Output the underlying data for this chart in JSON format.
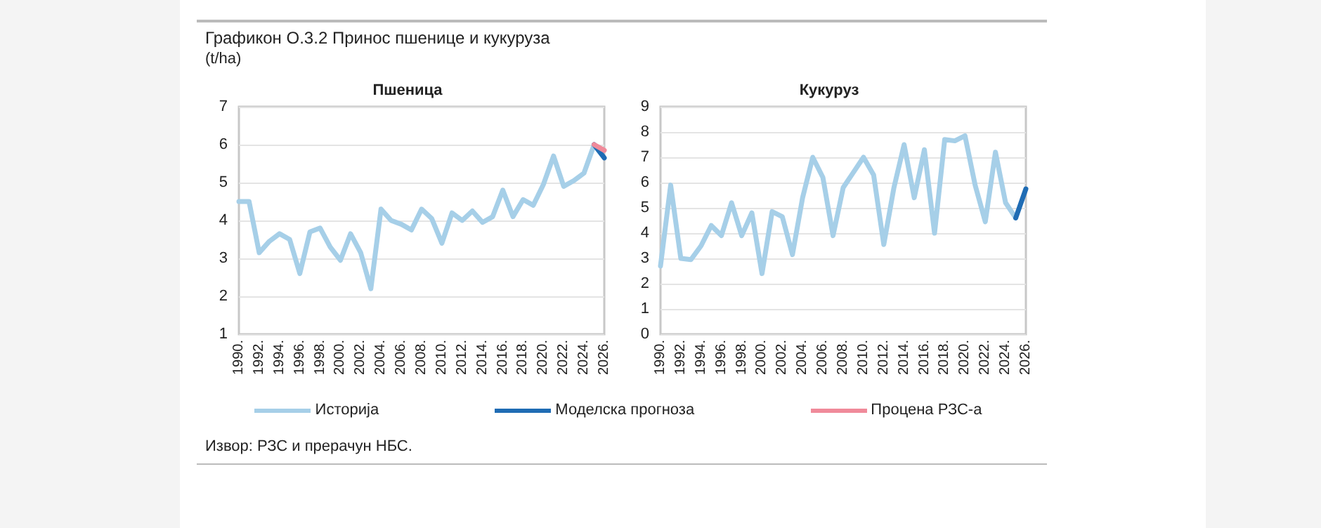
{
  "chart_data": [
    {
      "type": "line",
      "title": "Пшеница",
      "ylabel": "(t/ha)",
      "annotations": [
        "Графикон О.3.2 Принос пшенице и кукуруза",
        "Извор: РЗС и прерачун НБС."
      ],
      "categories": [
        "1990.",
        null,
        "1992.",
        null,
        "1994.",
        null,
        "1996.",
        null,
        "1998.",
        null,
        "2000.",
        null,
        "2002.",
        null,
        "2004.",
        null,
        "2006.",
        null,
        "2008.",
        null,
        "2010.",
        null,
        "2012.",
        null,
        "2014.",
        null,
        "2016.",
        null,
        "2018.",
        null,
        "2020.",
        null,
        "2022.",
        null,
        "2024.",
        null,
        "2026."
      ],
      "series": [
        {
          "name": "Историја",
          "color": "#a6cfe8",
          "values": [
            4.5,
            4.5,
            3.15,
            3.45,
            3.65,
            3.5,
            2.6,
            3.7,
            3.8,
            3.3,
            2.95,
            3.65,
            3.15,
            2.2,
            4.3,
            4.0,
            3.9,
            3.75,
            4.3,
            4.05,
            3.4,
            4.2,
            4.0,
            4.25,
            3.95,
            4.1,
            4.8,
            4.1,
            4.55,
            4.4,
            4.95,
            5.7,
            4.9,
            5.05,
            5.25,
            6.0,
            null
          ]
        },
        {
          "name": "Моделска прогноза",
          "color": "#1f6cb4",
          "values": [
            null,
            null,
            null,
            null,
            null,
            null,
            null,
            null,
            null,
            null,
            null,
            null,
            null,
            null,
            null,
            null,
            null,
            null,
            null,
            null,
            null,
            null,
            null,
            null,
            null,
            null,
            null,
            null,
            null,
            null,
            null,
            null,
            null,
            null,
            null,
            6.0,
            5.65
          ]
        },
        {
          "name": "Процена РЗС-а",
          "color": "#f08a9a",
          "values": [
            null,
            null,
            null,
            null,
            null,
            null,
            null,
            null,
            null,
            null,
            null,
            null,
            null,
            null,
            null,
            null,
            null,
            null,
            null,
            null,
            null,
            null,
            null,
            null,
            null,
            null,
            null,
            null,
            null,
            null,
            null,
            null,
            null,
            null,
            null,
            6.0,
            5.85
          ]
        }
      ],
      "ylim": [
        1,
        7
      ],
      "yticks": [
        1,
        2,
        3,
        4,
        5,
        6,
        7
      ],
      "grid": "y",
      "legend": "bottom",
      "marker": "none"
    },
    {
      "type": "line",
      "title": "Кукуруз",
      "categories": [
        "1990.",
        null,
        "1992.",
        null,
        "1994.",
        null,
        "1996.",
        null,
        "1998.",
        null,
        "2000.",
        null,
        "2002.",
        null,
        "2004.",
        null,
        "2006.",
        null,
        "2008.",
        null,
        "2010.",
        null,
        "2012.",
        null,
        "2014.",
        null,
        "2016.",
        null,
        "2018.",
        null,
        "2020.",
        null,
        "2022.",
        null,
        "2024.",
        null,
        "2026."
      ],
      "series": [
        {
          "name": "Историја",
          "color": "#a6cfe8",
          "values": [
            2.7,
            5.9,
            3.0,
            2.95,
            3.5,
            4.3,
            3.9,
            5.2,
            3.9,
            4.8,
            2.4,
            4.85,
            4.65,
            3.15,
            5.4,
            7.0,
            6.2,
            3.9,
            5.8,
            6.4,
            7.0,
            6.3,
            3.55,
            5.8,
            7.5,
            5.4,
            7.3,
            4.0,
            7.7,
            7.65,
            7.85,
            5.9,
            4.45,
            7.2,
            5.2,
            4.6,
            null
          ]
        },
        {
          "name": "Моделска прогноза",
          "color": "#1f6cb4",
          "values": [
            null,
            null,
            null,
            null,
            null,
            null,
            null,
            null,
            null,
            null,
            null,
            null,
            null,
            null,
            null,
            null,
            null,
            null,
            null,
            null,
            null,
            null,
            null,
            null,
            null,
            null,
            null,
            null,
            null,
            null,
            null,
            null,
            null,
            null,
            null,
            4.6,
            5.75
          ]
        }
      ],
      "ylim": [
        0,
        9
      ],
      "yticks": [
        0,
        1,
        2,
        3,
        4,
        5,
        6,
        7,
        8,
        9
      ],
      "grid": "y",
      "legend": "bottom",
      "marker": "none"
    }
  ]
}
